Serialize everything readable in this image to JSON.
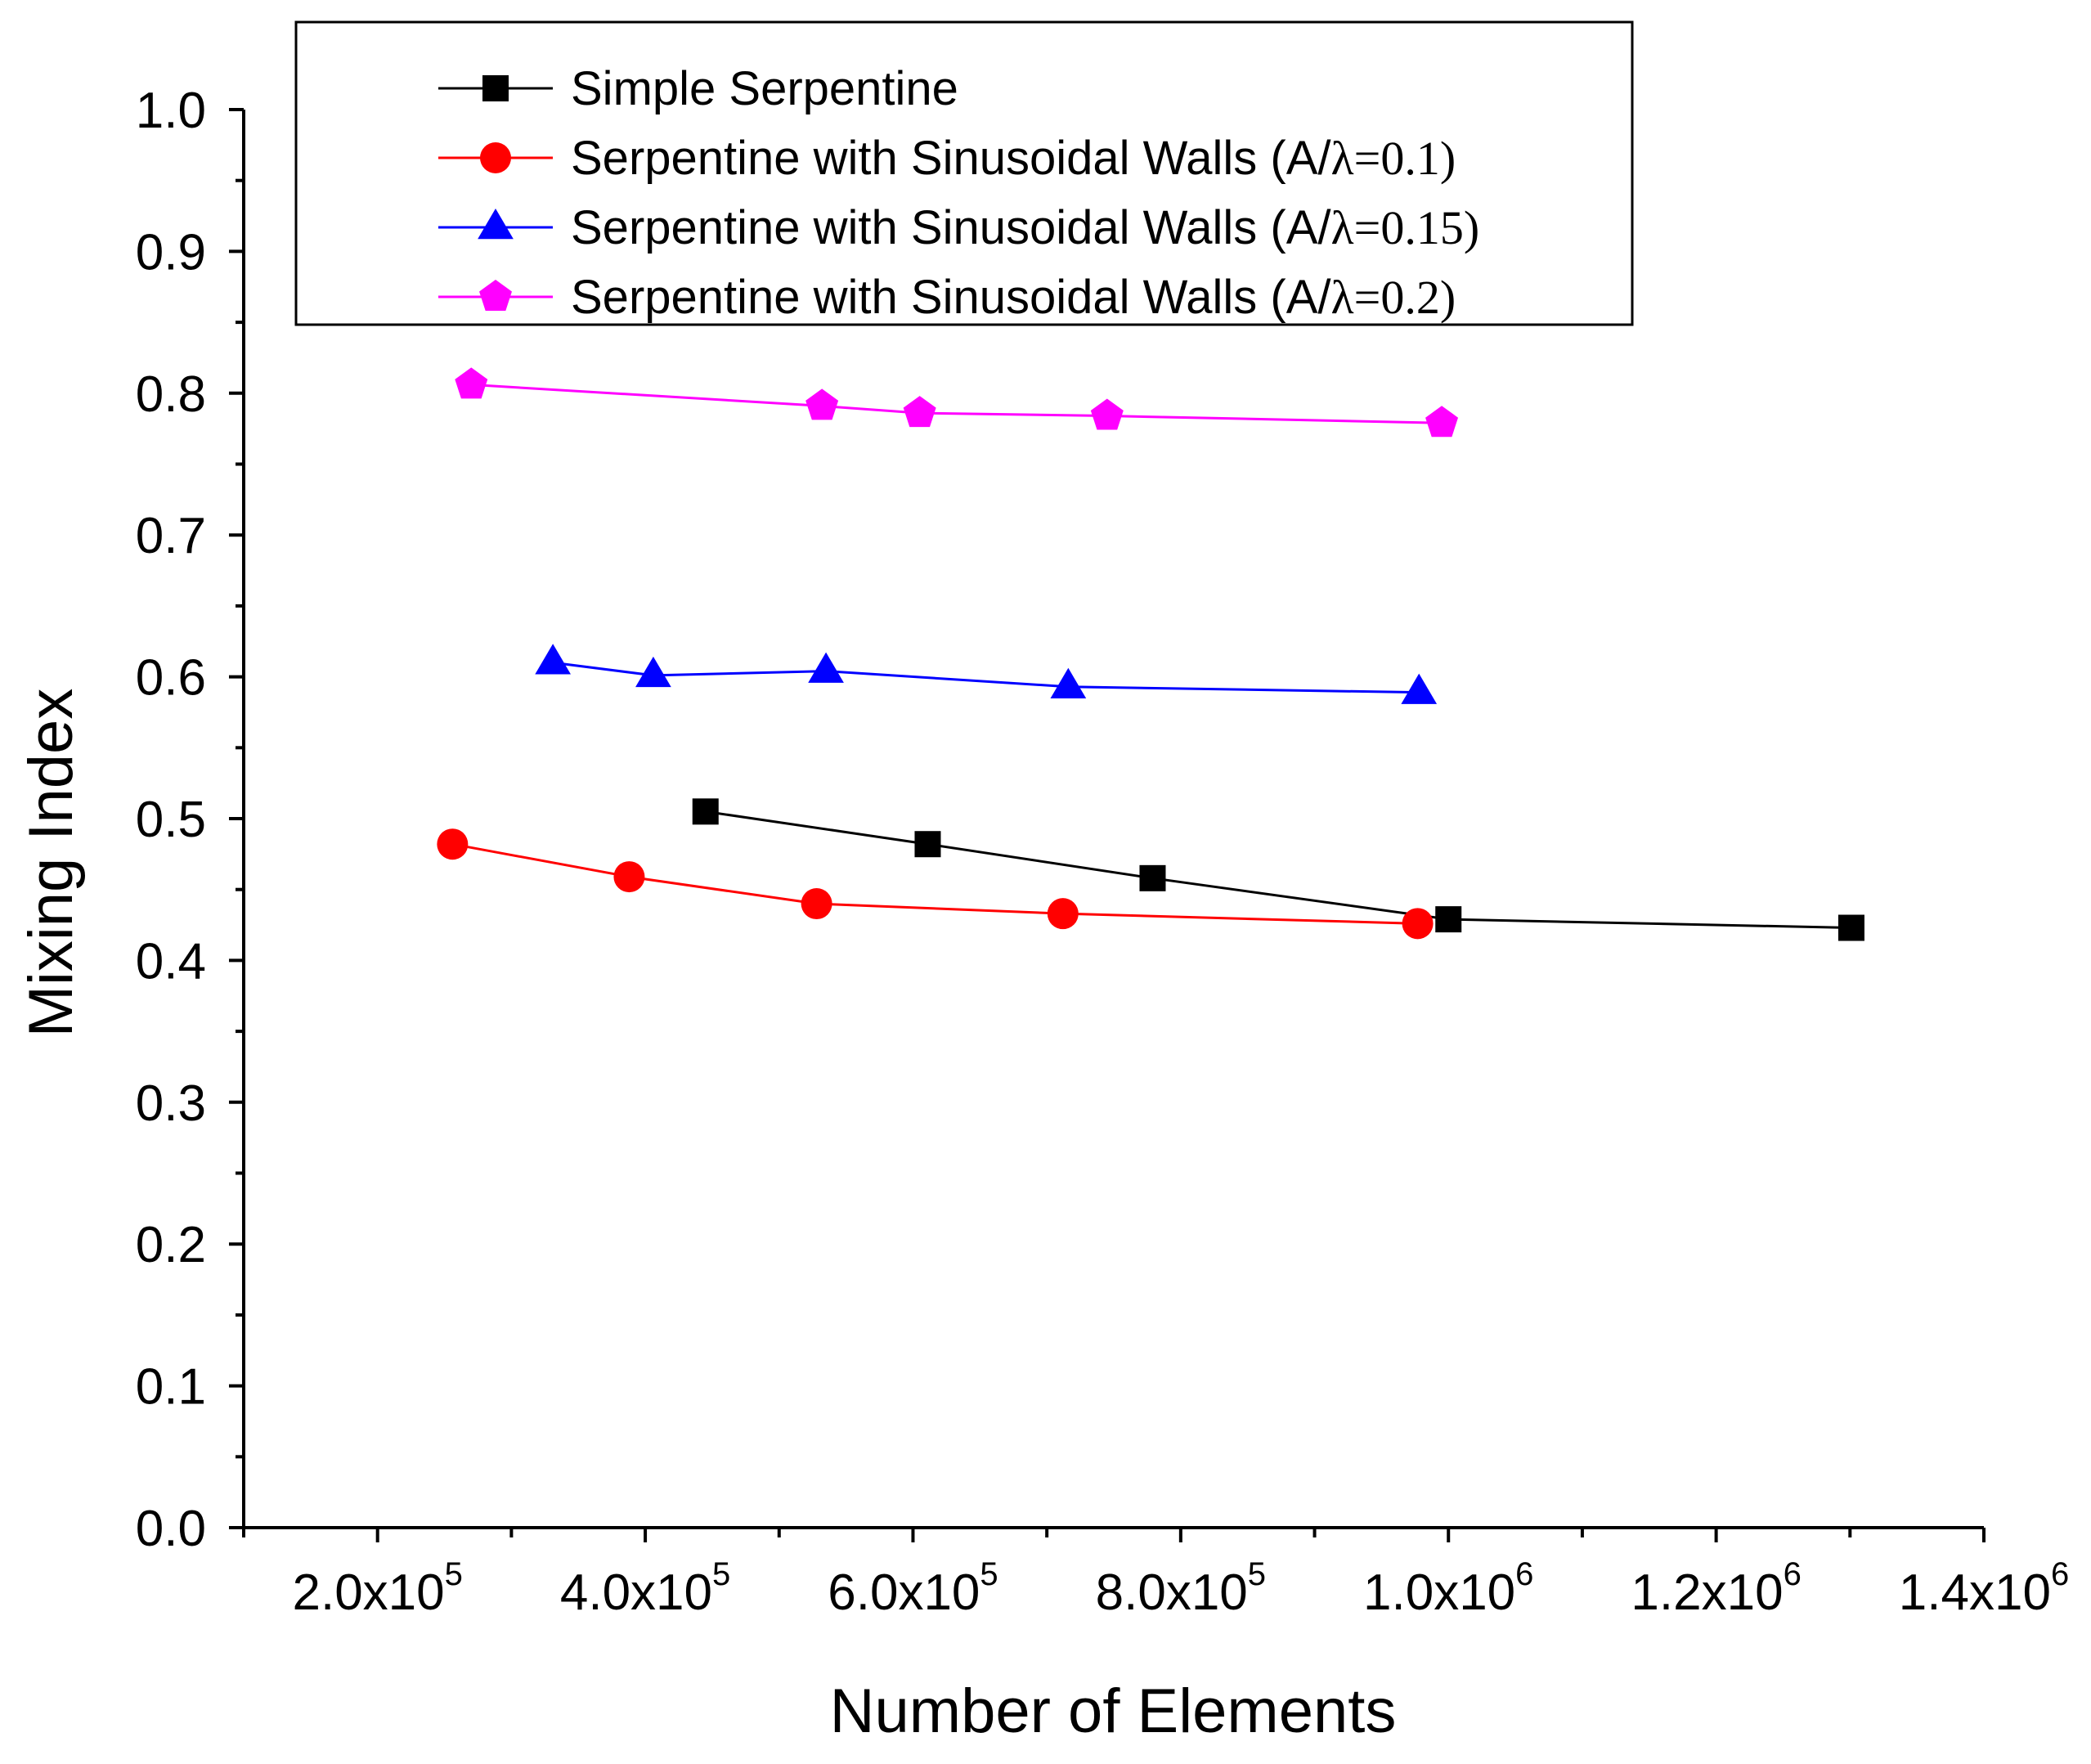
{
  "chart_data": {
    "type": "line",
    "title": "",
    "xlabel": "Number of Elements",
    "ylabel": "Mixing Index",
    "xlim": [
      100000,
      1400000
    ],
    "ylim": [
      0.0,
      1.0
    ],
    "grid": false,
    "legend_position": "top",
    "x_ticks": [
      {
        "value": 200000,
        "base": "2.0x10",
        "exp": "5"
      },
      {
        "value": 400000,
        "base": "4.0x10",
        "exp": "5"
      },
      {
        "value": 600000,
        "base": "6.0x10",
        "exp": "5"
      },
      {
        "value": 800000,
        "base": "8.0x10",
        "exp": "5"
      },
      {
        "value": 1000000,
        "base": "1.0x10",
        "exp": "6"
      },
      {
        "value": 1200000,
        "base": "1.2x10",
        "exp": "6"
      },
      {
        "value": 1400000,
        "base": "1.4x10",
        "exp": "6"
      }
    ],
    "y_ticks": [
      "0.0",
      "0.1",
      "0.2",
      "0.3",
      "0.4",
      "0.5",
      "0.6",
      "0.7",
      "0.8",
      "0.9",
      "1.0"
    ],
    "series": [
      {
        "name": "Simple Serpentine",
        "legend_main": "Simple Serpentine",
        "legend_paren": "",
        "color": "#000000",
        "marker": "square",
        "x": [
          445000,
          611000,
          779000,
          1000000,
          1301000
        ],
        "y": [
          0.505,
          0.482,
          0.458,
          0.429,
          0.423
        ]
      },
      {
        "name": "Serpentine with Sinusoidal Walls (A/λ=0.1)",
        "legend_main": "Serpentine with Sinusoidal Walls (A/",
        "legend_paren": "λ=0.1)",
        "color": "#ff0000",
        "marker": "circle",
        "x": [
          256000,
          388000,
          528000,
          712000,
          977000
        ],
        "y": [
          0.482,
          0.459,
          0.44,
          0.433,
          0.426
        ]
      },
      {
        "name": "Serpentine with Sinusoidal Walls (A/λ=0.15)",
        "legend_main": "Serpentine with Sinusoidal Walls (A/",
        "legend_paren": "λ=0.15)",
        "color": "#0000ff",
        "marker": "triangle",
        "x": [
          331000,
          406000,
          535000,
          716000,
          978000
        ],
        "y": [
          0.61,
          0.601,
          0.604,
          0.593,
          0.589
        ]
      },
      {
        "name": "Serpentine with Sinusoidal Walls (A/λ=0.2)",
        "legend_main": "Serpentine with Sinusoidal Walls (A/",
        "legend_paren": "λ=0.2)",
        "color": "#ff00ff",
        "marker": "pentagon",
        "x": [
          270000,
          532000,
          605000,
          745000,
          995000
        ],
        "y": [
          0.806,
          0.791,
          0.786,
          0.784,
          0.779
        ]
      }
    ]
  }
}
